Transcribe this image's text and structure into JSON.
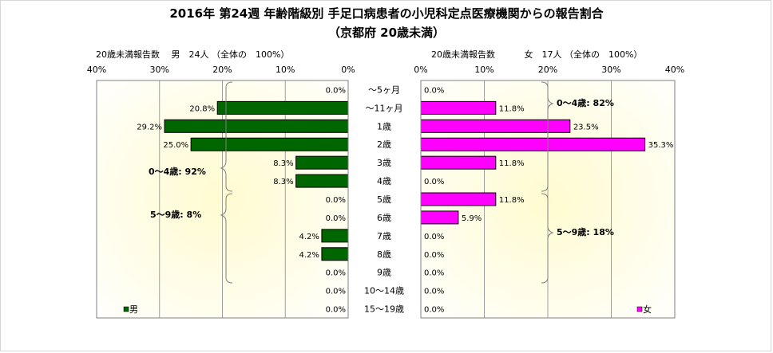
{
  "chart_data": {
    "type": "bar",
    "title": "2016年 第24週 年齢階級別 手足口病患者の小児科定点医療機関からの報告割合",
    "subtitle": "（京都府 20歳未満）",
    "categories": [
      "～5ヶ月",
      "～11ヶ月",
      "1歳",
      "2歳",
      "3歳",
      "4歳",
      "5歳",
      "6歳",
      "7歳",
      "8歳",
      "9歳",
      "10～14歳",
      "15～19歳"
    ],
    "series": [
      {
        "name": "男",
        "header": "20歳未満報告数　 男　24人 （全体の　100%）",
        "color": "#006600",
        "values": [
          0.0,
          20.8,
          29.2,
          25.0,
          8.3,
          8.3,
          0.0,
          0.0,
          4.2,
          4.2,
          0.0,
          0.0,
          0.0
        ],
        "labels": [
          "0.0%",
          "20.8%",
          "29.2%",
          "25.0%",
          "8.3%",
          "8.3%",
          "0.0%",
          "0.0%",
          "4.2%",
          "4.2%",
          "0.0%",
          "0.0%",
          "0.0%"
        ]
      },
      {
        "name": "女",
        "header": "20歳未満報告数　　　 女　17人 （全体の　100%）",
        "color": "#ff00ff",
        "values": [
          0.0,
          11.8,
          23.5,
          35.3,
          11.8,
          0.0,
          11.8,
          5.9,
          0.0,
          0.0,
          0.0,
          0.0,
          0.0
        ],
        "labels": [
          "0.0%",
          "11.8%",
          "23.5%",
          "35.3%",
          "11.8%",
          "0.0%",
          "11.8%",
          "5.9%",
          "0.0%",
          "0.0%",
          "0.0%",
          "0.0%",
          "0.0%"
        ]
      }
    ],
    "xlim": [
      0,
      40
    ],
    "xticks": [
      "40%",
      "30%",
      "20%",
      "10%",
      "0%"
    ],
    "xticks_right": [
      "0%",
      "10%",
      "20%",
      "30%",
      "40%"
    ],
    "annotations": {
      "male_0_4": "0～4歳: 92%",
      "male_5_9": "5～9歳: 8%",
      "female_0_4": "0～4歳: 82%",
      "female_5_9": "5～9歳: 18%"
    },
    "legend": {
      "male": "男",
      "female": "女"
    },
    "plot_background": "light yellow radial gradient",
    "grid": true
  }
}
